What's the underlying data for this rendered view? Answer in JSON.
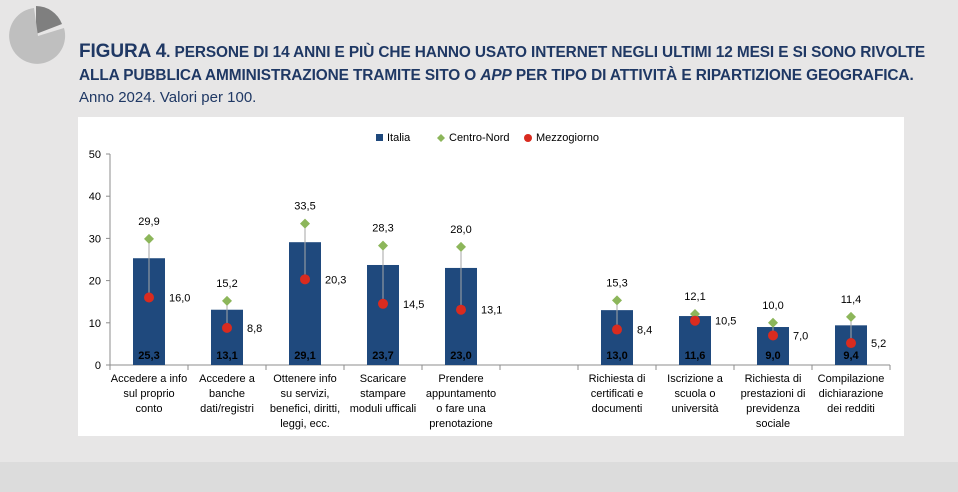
{
  "header": {
    "fig_label": "FIGURA 4",
    "title_line1": ". PERSONE DI 14 ANNI E PIÙ CHE HANNO USATO INTERNET NEGLI ULTIMI 12 MESI E SI SONO RIVOLTE",
    "title_line2a": "ALLA PUBBLICA AMMINISTRAZIONE TRAMITE SITO O ",
    "title_line2_italic": "APP",
    "title_line2b": " PER TIPO DI ATTIVITÀ E RIPARTIZIONE GEOGRAFICA.",
    "subtitle": "Anno 2024. Valori per 100."
  },
  "colors": {
    "italia": "#1f497d",
    "centro_nord": "#8cb65a",
    "mezzogiorno": "#d92b1f",
    "title": "#1f3864",
    "logo_dark": "#7f7f7f",
    "logo_light": "#bfbfbf"
  },
  "chart_data": {
    "type": "bar",
    "ylim": [
      0,
      50
    ],
    "yticks": [
      "0",
      "10",
      "20",
      "30",
      "40",
      "50"
    ],
    "grid": false,
    "legend_position": "top",
    "categories": [
      [
        "Accedere a info",
        "sul proprio",
        "conto"
      ],
      [
        "Accedere a",
        "banche",
        "dati/registri"
      ],
      [
        "Ottenere info",
        "su servizi,",
        "benefici, diritti,",
        "leggi,  ecc."
      ],
      [
        "Scaricare",
        "stampare",
        "moduli ufficali"
      ],
      [
        "Prendere",
        "appuntamento",
        "o fare una",
        "prenotazione"
      ],
      [],
      [
        "Richiesta di",
        "certificati e",
        "documenti"
      ],
      [
        "Iscrizione a",
        "scuola o",
        "università"
      ],
      [
        "Richiesta di",
        "prestazioni di",
        "previdenza",
        "sociale"
      ],
      [
        "Compilazione",
        "dichiarazione",
        "dei redditi"
      ]
    ],
    "series": [
      {
        "name": "Italia",
        "kind": "bar",
        "values": [
          25.3,
          13.1,
          29.1,
          23.7,
          23.0,
          null,
          13.0,
          11.6,
          9.0,
          9.4
        ],
        "labels": [
          "25,3",
          "13,1",
          "29,1",
          "23,7",
          "23,0",
          "",
          "13,0",
          "11,6",
          "9,0",
          "9,4"
        ]
      },
      {
        "name": "Centro-Nord",
        "kind": "diamond",
        "values": [
          29.9,
          15.2,
          33.5,
          28.3,
          28.0,
          null,
          15.3,
          12.1,
          10.0,
          11.4
        ],
        "labels": [
          "29,9",
          "15,2",
          "33,5",
          "28,3",
          "28,0",
          "",
          "15,3",
          "12,1",
          "10,0",
          "11,4"
        ]
      },
      {
        "name": "Mezzogiorno",
        "kind": "circle",
        "values": [
          16.0,
          8.8,
          20.3,
          14.5,
          13.1,
          null,
          8.4,
          10.5,
          7.0,
          5.2
        ],
        "labels": [
          "16,0",
          "8,8",
          "20,3",
          "14,5",
          "13,1",
          "",
          "8,4",
          "10,5",
          "7,0",
          "5,2"
        ]
      }
    ]
  }
}
